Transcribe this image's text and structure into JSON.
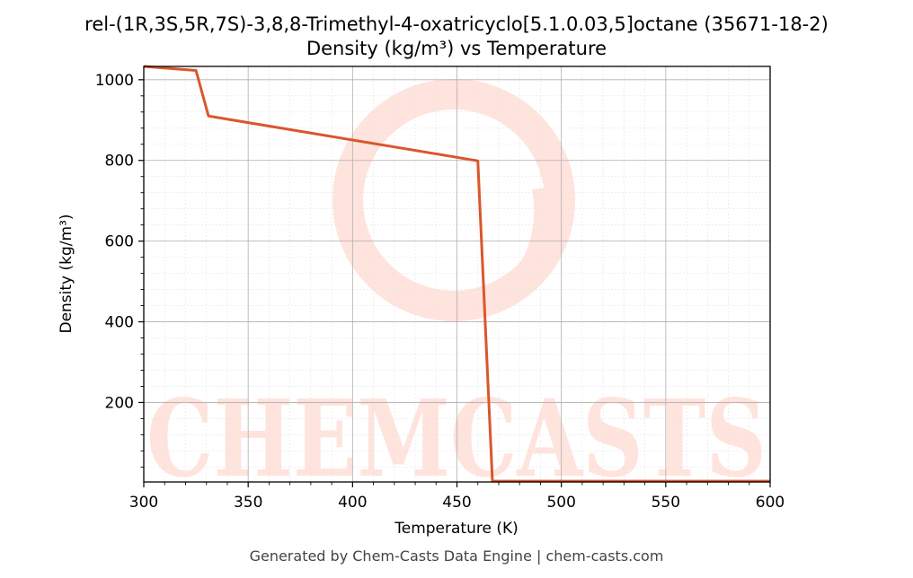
{
  "colors": {
    "line": "#d9572b",
    "watermark": "#ffe3dd",
    "grid_major": "#b0b0b0",
    "grid_minor": "#e4e4e4"
  },
  "watermark": {
    "text": "CHEMCASTS",
    "icon": "chem-casts-ring-logo"
  },
  "footer": "Generated by Chem-Casts Data Engine | chem-casts.com",
  "chart_data": {
    "type": "line",
    "title": "rel-(1R,3S,5R,7S)-3,8,8-Trimethyl-4-oxatricyclo[5.1.0.03,5]octane (35671-18-2)",
    "subtitle": "Density (kg/m³) vs Temperature",
    "xlabel": "Temperature (K)",
    "ylabel": "Density (kg/m³)",
    "xlim": [
      300,
      600
    ],
    "ylim": [
      3,
      1033
    ],
    "xticks": [
      300,
      350,
      400,
      450,
      500,
      550,
      600
    ],
    "yticks": [
      200,
      400,
      600,
      800,
      1000
    ],
    "grid": true,
    "series": [
      {
        "x": [
          300,
          325,
          331,
          460,
          467,
          600
        ],
        "y": [
          1033,
          1023,
          910,
          799,
          5,
          5
        ]
      }
    ]
  }
}
